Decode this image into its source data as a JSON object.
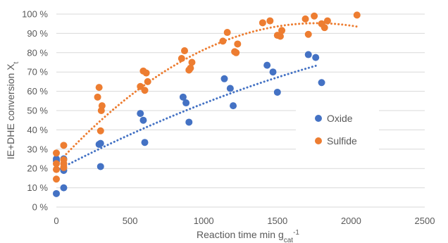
{
  "chart_data": {
    "type": "scatter",
    "xlabel": "Reaction time min g",
    "xlabel_subscript": "cat",
    "xlabel_superscript": "-1",
    "ylabel": "IE+DHE conversion X",
    "ylabel_subscript": "t",
    "xlim": [
      0,
      2500
    ],
    "ylim": [
      0,
      100
    ],
    "xticks": [
      0,
      500,
      1000,
      1500,
      2000,
      2500
    ],
    "yticks": [
      0,
      10,
      20,
      30,
      40,
      50,
      60,
      70,
      80,
      90,
      100
    ],
    "xtick_labels": [
      "0",
      "500",
      "1000",
      "1500",
      "2000",
      "2500"
    ],
    "ytick_labels": [
      "0 %",
      "10 %",
      "20 %",
      "30 %",
      "40 %",
      "50 %",
      "60 %",
      "70 %",
      "80 %",
      "90 %",
      "100 %"
    ],
    "grid": "horizontal",
    "legend": "center-right",
    "series": [
      {
        "name": "Oxide",
        "color": "#4472c4",
        "trendline": {
          "type": "polynomial",
          "style": "dotted",
          "x_range": [
            0,
            1760
          ],
          "coef": [
            18.9,
            0.04,
            -5.2e-06
          ]
        },
        "points": [
          [
            0,
            7
          ],
          [
            0,
            24
          ],
          [
            0,
            25
          ],
          [
            50,
            10
          ],
          [
            50,
            19
          ],
          [
            50,
            25
          ],
          [
            290,
            32.5
          ],
          [
            300,
            21
          ],
          [
            300,
            33
          ],
          [
            570,
            48.5
          ],
          [
            590,
            45
          ],
          [
            600,
            33.5
          ],
          [
            860,
            57
          ],
          [
            880,
            54
          ],
          [
            900,
            44
          ],
          [
            1140,
            66.5
          ],
          [
            1180,
            61.5
          ],
          [
            1200,
            52.5
          ],
          [
            1430,
            73.5
          ],
          [
            1470,
            70
          ],
          [
            1500,
            59.5
          ],
          [
            1710,
            79
          ],
          [
            1760,
            77.5
          ],
          [
            1800,
            64.5
          ]
        ]
      },
      {
        "name": "Sulfide",
        "color": "#ed7d31",
        "trendline": {
          "type": "polynomial",
          "style": "dotted",
          "x_range": [
            0,
            2040
          ],
          "coef": [
            22,
            0.083,
            -2.35e-05
          ]
        },
        "points": [
          [
            0,
            14.5
          ],
          [
            0,
            19.5
          ],
          [
            0,
            22.5
          ],
          [
            0,
            28
          ],
          [
            50,
            20.5
          ],
          [
            50,
            22.5
          ],
          [
            50,
            24.5
          ],
          [
            50,
            32
          ],
          [
            280,
            57
          ],
          [
            290,
            62
          ],
          [
            300,
            39.5
          ],
          [
            305,
            50
          ],
          [
            310,
            52.5
          ],
          [
            570,
            62.5
          ],
          [
            590,
            70.5
          ],
          [
            600,
            60.5
          ],
          [
            610,
            69.5
          ],
          [
            620,
            65
          ],
          [
            850,
            77
          ],
          [
            870,
            81
          ],
          [
            900,
            71
          ],
          [
            910,
            72
          ],
          [
            920,
            75
          ],
          [
            1130,
            86
          ],
          [
            1160,
            90.5
          ],
          [
            1210,
            80.5
          ],
          [
            1220,
            80
          ],
          [
            1230,
            84.5
          ],
          [
            1400,
            95.5
          ],
          [
            1450,
            96.5
          ],
          [
            1500,
            89
          ],
          [
            1520,
            88.5
          ],
          [
            1530,
            91.5
          ],
          [
            1690,
            97.5
          ],
          [
            1710,
            89.5
          ],
          [
            1750,
            99
          ],
          [
            1800,
            95
          ],
          [
            1820,
            93
          ],
          [
            1840,
            96.5
          ],
          [
            2040,
            99.5
          ]
        ]
      }
    ]
  }
}
